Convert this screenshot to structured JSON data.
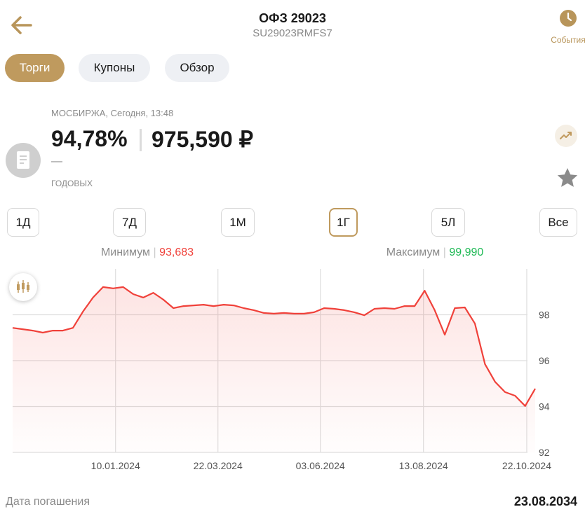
{
  "header": {
    "title": "ОФЗ 29023",
    "subtitle": "SU29023RMFS7",
    "events": "События"
  },
  "tabs": [
    "Торги",
    "Купоны",
    "Обзор"
  ],
  "active_tab": 0,
  "quote": {
    "exchange": "МОСБИРЖА, Сегодня, 13:48",
    "price_pct": "94,78%",
    "price_rub": "975,590 ₽",
    "yield": "—",
    "yield_label": "ГОДОВЫХ"
  },
  "periods": [
    "1Д",
    "7Д",
    "1М",
    "1Г",
    "5Л",
    "Все"
  ],
  "active_period": 3,
  "range": {
    "min_label": "Минимум",
    "min": "93,683",
    "max_label": "Максимум",
    "max": "99,990"
  },
  "chart_data": {
    "type": "line",
    "color": "#f0413a",
    "values": [
      97.43,
      97.37,
      97.31,
      97.22,
      97.31,
      97.31,
      97.43,
      98.14,
      98.75,
      99.21,
      99.15,
      99.21,
      98.9,
      98.75,
      98.96,
      98.66,
      98.29,
      98.38,
      98.41,
      98.44,
      98.38,
      98.44,
      98.41,
      98.29,
      98.2,
      98.08,
      98.05,
      98.08,
      98.05,
      98.05,
      98.11,
      98.29,
      98.26,
      98.2,
      98.11,
      97.98,
      98.26,
      98.29,
      98.26,
      98.38,
      98.38,
      99.05,
      98.2,
      97.13,
      98.29,
      98.32,
      97.62,
      95.85,
      95.08,
      94.63,
      94.47,
      94.02,
      94.78
    ],
    "xlim": [
      0,
      52
    ],
    "xticks": [
      {
        "value": 10.24,
        "label": "10.01.2024"
      },
      {
        "value": 20.43,
        "label": "22.03.2024"
      },
      {
        "value": 30.62,
        "label": "03.06.2024"
      },
      {
        "value": 40.88,
        "label": "13.08.2024"
      },
      {
        "value": 51.16,
        "label": "22.10.2024"
      }
    ],
    "ylim": [
      92,
      100
    ],
    "yticks": [
      92,
      94,
      96,
      98
    ],
    "grid": true
  },
  "maturity": {
    "label": "Дата погашения",
    "value": "23.08.2034"
  }
}
